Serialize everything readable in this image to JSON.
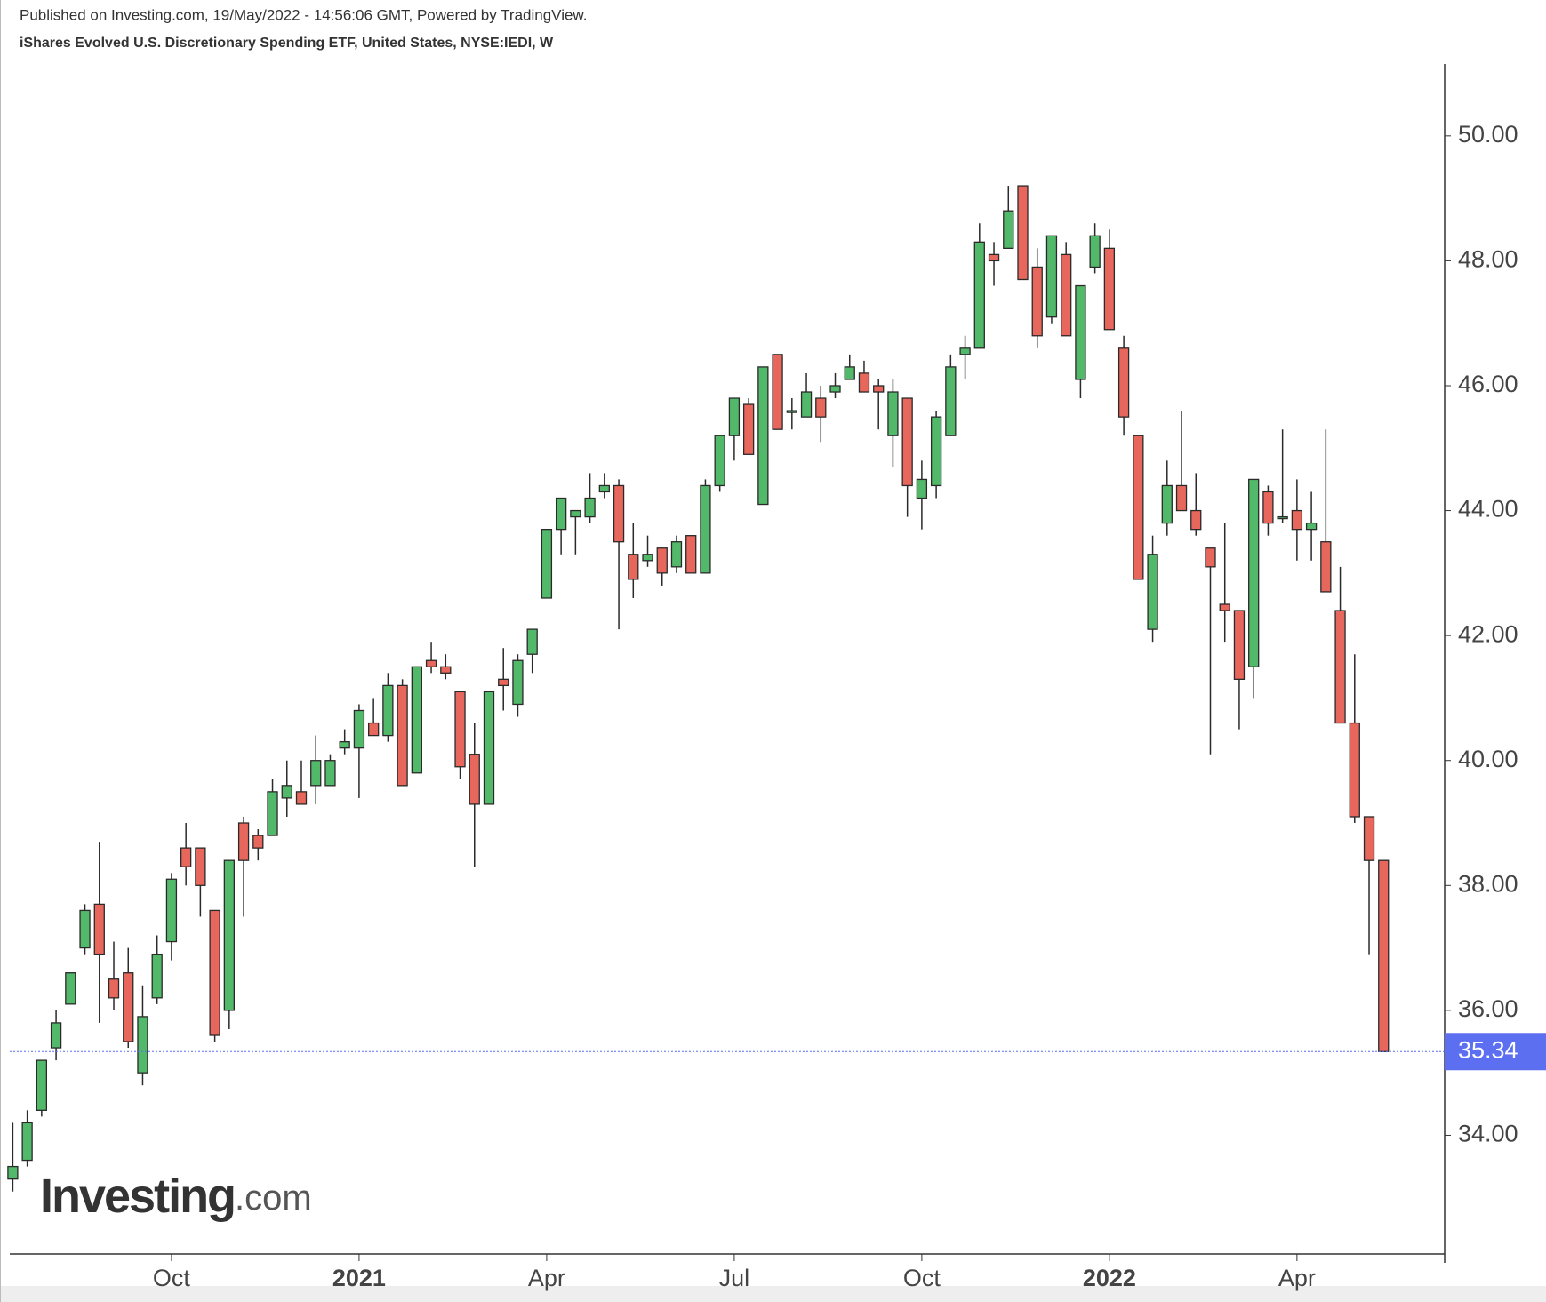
{
  "chart_data": {
    "type": "candlestick",
    "subtitle": "Published on Investing.com, 19/May/2022 - 14:56:06 GMT, Powered by TradingView.",
    "title": "iShares Evolved U.S. Discretionary Spending ETF, United States, NYSE:IEDI, W",
    "logo_main": "Investing",
    "logo_suffix": ".com",
    "categories": [
      null,
      null,
      null,
      null,
      null,
      null,
      null,
      null,
      null,
      null,
      null,
      "Oct",
      null,
      null,
      null,
      null,
      null,
      null,
      null,
      null,
      null,
      null,
      null,
      null,
      "2021",
      null,
      null,
      null,
      null,
      null,
      null,
      null,
      null,
      null,
      null,
      null,
      null,
      "Apr",
      null,
      null,
      null,
      null,
      null,
      null,
      null,
      null,
      null,
      null,
      null,
      null,
      "Jul",
      null,
      null,
      null,
      null,
      null,
      null,
      null,
      null,
      null,
      null,
      null,
      null,
      "Oct",
      null,
      null,
      null,
      null,
      null,
      null,
      null,
      null,
      null,
      null,
      null,
      null,
      "2022",
      null,
      null,
      null,
      null,
      null,
      null,
      null,
      null,
      null,
      null,
      null,
      null,
      "Apr",
      null,
      null,
      null,
      null,
      null,
      null
    ],
    "open": [
      33.3,
      33.6,
      34.4,
      35.4,
      36.1,
      37.0,
      37.7,
      36.5,
      36.6,
      35.0,
      36.2,
      37.1,
      38.6,
      38.6,
      37.6,
      36.0,
      39.0,
      38.8,
      38.8,
      39.4,
      39.5,
      39.6,
      39.6,
      40.2,
      40.2,
      40.6,
      40.4,
      41.2,
      39.8,
      41.6,
      41.5,
      41.1,
      40.1,
      39.3,
      41.3,
      40.9,
      41.7,
      42.6,
      43.7,
      43.9,
      43.9,
      44.3,
      44.4,
      43.3,
      43.2,
      43.4,
      43.1,
      43.6,
      43.0,
      44.4,
      45.2,
      45.7,
      44.1,
      46.5,
      45.6,
      45.5,
      45.8,
      45.9,
      46.1,
      46.2,
      46.0,
      45.2,
      45.8,
      44.2,
      44.4,
      45.2,
      46.5,
      46.6,
      48.1,
      48.2,
      49.2,
      47.9,
      47.1,
      48.1,
      46.1,
      47.9,
      48.2,
      46.6,
      45.2,
      42.1,
      43.8,
      44.4,
      44.0,
      43.4,
      42.5,
      42.4,
      41.5,
      44.3,
      43.9,
      44.0,
      43.7,
      43.5,
      42.4,
      40.6,
      39.1,
      38.4
    ],
    "high": [
      34.2,
      34.4,
      35.2,
      36.0,
      36.6,
      37.7,
      38.7,
      37.1,
      37.0,
      36.4,
      37.2,
      38.2,
      39.0,
      38.6,
      37.6,
      38.4,
      39.1,
      38.9,
      39.7,
      40.0,
      40.0,
      40.4,
      40.1,
      40.5,
      40.9,
      41.0,
      41.4,
      41.3,
      41.5,
      41.9,
      41.7,
      41.1,
      40.6,
      41.1,
      41.8,
      41.7,
      42.1,
      43.7,
      44.2,
      44.0,
      44.6,
      44.6,
      44.5,
      43.8,
      43.6,
      43.4,
      43.6,
      43.6,
      44.5,
      45.2,
      45.8,
      45.8,
      46.3,
      46.5,
      45.8,
      46.2,
      46.0,
      46.2,
      46.5,
      46.4,
      46.1,
      46.1,
      45.8,
      44.8,
      45.6,
      46.5,
      46.8,
      48.6,
      48.3,
      49.2,
      49.2,
      48.2,
      48.4,
      48.3,
      47.6,
      48.6,
      48.5,
      46.8,
      45.2,
      43.6,
      44.8,
      45.6,
      44.6,
      43.4,
      43.8,
      42.4,
      44.5,
      44.4,
      45.3,
      44.5,
      44.3,
      45.3,
      43.1,
      41.7,
      39.1,
      38.4
    ],
    "low": [
      33.1,
      33.5,
      34.3,
      35.2,
      36.1,
      36.9,
      35.8,
      36.0,
      35.4,
      34.8,
      36.1,
      36.8,
      38.0,
      37.5,
      35.5,
      35.7,
      37.5,
      38.4,
      38.8,
      39.1,
      39.3,
      39.3,
      39.6,
      40.1,
      39.4,
      40.4,
      40.3,
      39.6,
      39.8,
      41.4,
      41.3,
      39.7,
      38.3,
      39.3,
      40.8,
      40.7,
      41.4,
      42.6,
      43.3,
      43.3,
      43.8,
      44.2,
      42.1,
      42.6,
      43.1,
      42.8,
      43.0,
      43.0,
      43.0,
      44.3,
      44.8,
      44.9,
      44.1,
      45.3,
      45.3,
      45.5,
      45.1,
      45.8,
      46.1,
      45.9,
      45.3,
      44.7,
      43.9,
      43.7,
      44.2,
      45.2,
      46.1,
      46.6,
      47.6,
      48.2,
      47.7,
      46.6,
      47.0,
      46.8,
      45.8,
      47.8,
      46.9,
      45.2,
      42.9,
      41.9,
      43.6,
      44.0,
      43.6,
      40.1,
      41.9,
      40.5,
      41.0,
      43.6,
      43.8,
      43.2,
      43.2,
      42.7,
      40.6,
      39.0,
      36.9,
      35.34
    ],
    "close": [
      33.5,
      34.2,
      35.2,
      35.8,
      36.6,
      37.6,
      36.9,
      36.2,
      35.5,
      35.9,
      36.9,
      38.1,
      38.3,
      38.0,
      35.6,
      38.4,
      38.4,
      38.6,
      39.5,
      39.6,
      39.3,
      40.0,
      40.0,
      40.3,
      40.8,
      40.4,
      41.2,
      39.6,
      41.5,
      41.5,
      41.4,
      39.9,
      39.3,
      41.1,
      41.2,
      41.6,
      42.1,
      43.7,
      44.2,
      44.0,
      44.2,
      44.4,
      43.5,
      42.9,
      43.3,
      43.0,
      43.5,
      43.0,
      44.4,
      45.2,
      45.8,
      44.9,
      46.3,
      45.3,
      45.6,
      45.9,
      45.5,
      46.0,
      46.3,
      45.9,
      45.9,
      45.9,
      44.4,
      44.5,
      45.5,
      46.3,
      46.6,
      48.3,
      48.0,
      48.8,
      47.7,
      46.8,
      48.4,
      46.8,
      47.6,
      48.4,
      46.9,
      45.5,
      42.9,
      43.3,
      44.4,
      44.0,
      43.7,
      43.1,
      42.4,
      41.3,
      44.5,
      43.8,
      43.9,
      43.7,
      43.8,
      42.7,
      40.6,
      39.1,
      38.4,
      35.34
    ],
    "last_price_label": "35.34",
    "up_color": "#53b96a",
    "down_color": "#e8675c",
    "price_line_color": "#5b6ff0",
    "ylim": [
      32.1,
      51.15
    ],
    "yticks": [
      {
        "value": 34,
        "label": "34.00"
      },
      {
        "value": 36,
        "label": "36.00"
      },
      {
        "value": 38,
        "label": "38.00"
      },
      {
        "value": 40,
        "label": "40.00"
      },
      {
        "value": 42,
        "label": "42.00"
      },
      {
        "value": 44,
        "label": "44.00"
      },
      {
        "value": 46,
        "label": "46.00"
      },
      {
        "value": 48,
        "label": "48.00"
      },
      {
        "value": 50,
        "label": "50.00"
      }
    ]
  }
}
